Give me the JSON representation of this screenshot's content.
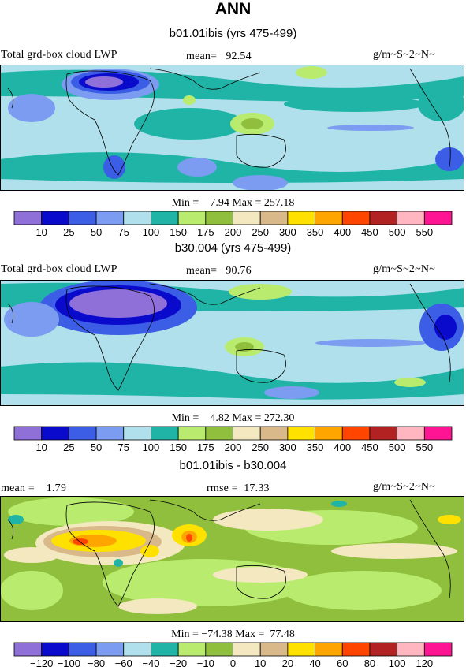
{
  "main_title": "ANN",
  "colors": {
    "abs_scale": [
      "#8f6fd8",
      "#0a0acd",
      "#3c5ee6",
      "#7b9cf0",
      "#b0e0ec",
      "#1fb4a6",
      "#b9ec6e",
      "#8fbf3c",
      "#f3e8c0",
      "#d9b98a",
      "#ffe100",
      "#ffa500",
      "#ff4500",
      "#b22222",
      "#ffb6c1",
      "#ff1493"
    ],
    "diff_scale": [
      "#8f6fd8",
      "#0a0acd",
      "#3c5ee6",
      "#7b9cf0",
      "#b0e0ec",
      "#1fb4a6",
      "#b9ec6e",
      "#8fbf3c",
      "#f3e8c0",
      "#d9b98a",
      "#ffe100",
      "#ffa500",
      "#ff4500",
      "#b22222",
      "#ffb6c1",
      "#ff1493"
    ]
  },
  "chart_data": [
    {
      "type": "heatmap",
      "title": "b01.01ibis (yrs 475-499)",
      "variable": "Total grd-box cloud LWP",
      "units": "g/m~S~2~N~",
      "mean_label": "mean=",
      "mean": "92.54",
      "min_label": "Min =",
      "min": "7.94",
      "max_label": "Max =",
      "max": "257.18",
      "colorbar_levels": [
        "10",
        "25",
        "50",
        "75",
        "100",
        "150",
        "175",
        "200",
        "250",
        "300",
        "350",
        "400",
        "450",
        "500",
        "550"
      ]
    },
    {
      "type": "heatmap",
      "title": "b30.004 (yrs 475-499)",
      "variable": "Total grd-box cloud LWP",
      "units": "g/m~S~2~N~",
      "mean_label": "mean=",
      "mean": "90.76",
      "min_label": "Min =",
      "min": "4.82",
      "max_label": "Max =",
      "max": "272.30",
      "colorbar_levels": [
        "10",
        "25",
        "50",
        "75",
        "100",
        "150",
        "175",
        "200",
        "250",
        "300",
        "350",
        "400",
        "450",
        "500",
        "550"
      ]
    },
    {
      "type": "heatmap",
      "title": "b01.01ibis - b30.004",
      "units": "g/m~S~2~N~",
      "mean_label": "mean =",
      "mean": "1.79",
      "rmse_label": "rmse =",
      "rmse": "17.33",
      "min_label": "Min =",
      "min": "−74.38",
      "max_label": "Max =",
      "max": "77.48",
      "colorbar_levels": [
        "−120",
        "−100",
        "−80",
        "−60",
        "−40",
        "−20",
        "−10",
        "0",
        "10",
        "20",
        "40",
        "60",
        "80",
        "100",
        "120"
      ]
    }
  ]
}
